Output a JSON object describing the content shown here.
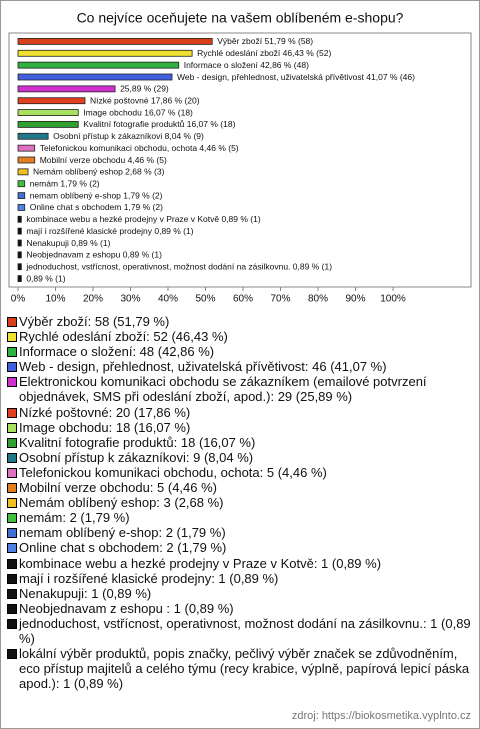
{
  "chart_data": {
    "type": "bar",
    "orientation": "horizontal",
    "title": "Co nejvíce oceňujete na vašem oblíbeném e-shopu?",
    "values": [
      51.79,
      46.43,
      42.86,
      41.07,
      25.89,
      17.86,
      16.07,
      16.07,
      8.04,
      4.46,
      4.46,
      2.68,
      1.79,
      1.79,
      1.79,
      0.89,
      0.89,
      0.89,
      0.89,
      0.89,
      0.89
    ],
    "value_labels": [
      "Výběr zboží 51,79 % (58)",
      "Rychlé odeslání zboží 46,43 % (52)",
      "Informace o složení 42,86 % (48)",
      "Web - design, přehlednost, uživatelská přívětivost 41,07 % (46)",
      "25,89 % (29)",
      "Nízké poštovné 17,86 % (20)",
      "Image obchodu 16,07 % (18)",
      "Kvalitní fotografie produktů 16,07 % (18)",
      "Osobní přístup k zákazníkovi 8,04 % (9)",
      "Telefonickou komunikaci obchodu, ochota 4,46 % (5)",
      "Mobilní verze obchodu 4,46 % (5)",
      "Nemám oblíbený eshop 2,68 % (3)",
      "nemám 1,79 % (2)",
      "nemam oblíbený e-shop 1,79 % (2)",
      "Online chat s obchodem 1,79 % (2)",
      "kombinace webu a hezké prodejny v Praze v Kotvě 0,89 % (1)",
      "mají i rozšířené klasické prodejny 0,89 % (1)",
      "Nenakupuji 0,89 % (1)",
      "Neobjednavam z eshopu  0,89 % (1)",
      "jednoduchost, vstřícnost, operativnost, možnost dodání na zásilkovnu. 0,89 % (1)",
      "0,89 % (1)"
    ],
    "legend": [
      "Výběr zboží: 58 (51,79 %)",
      "Rychlé odeslání zboží: 52 (46,43 %)",
      "Informace o složení: 48 (42,86 %)",
      "Web - design, přehlednost, uživatelská přívětivost: 46 (41,07 %)",
      "Elektronickou komunikaci obchodu se zákazníkem (emailové potvrzení objednávek, SMS při odeslání zboží, apod.): 29 (25,89 %)",
      "Nízké poštovné: 20 (17,86 %)",
      "Image obchodu: 18 (16,07 %)",
      "Kvalitní fotografie produktů: 18 (16,07 %)",
      "Osobní přístup k zákazníkovi: 9 (8,04 %)",
      "Telefonickou komunikaci obchodu, ochota: 5 (4,46 %)",
      "Mobilní verze obchodu: 5 (4,46 %)",
      "Nemám oblíbený eshop: 3 (2,68 %)",
      "nemám: 2 (1,79 %)",
      "nemam oblíbený e-shop: 2 (1,79 %)",
      "Online chat s obchodem: 2 (1,79 %)",
      "kombinace webu a hezké prodejny v Praze v Kotvě: 1 (0,89 %)",
      "mají i rozšířené klasické prodejny: 1 (0,89 %)",
      "Nenakupuji: 1 (0,89 %)",
      "Neobjednavam z eshopu : 1 (0,89 %)",
      "jednoduchost, vstřícnost, operativnost, možnost dodání na zásilkovnu.: 1 (0,89 %)",
      "lokální výběr produktů, popis značky, pečlivý výběr značek se zdůvodněním, eco přístup majitelů a celého týmu (recy krabice, výplně, papírová lepicí páska apod.): 1 (0,89 %)"
    ],
    "colors": [
      "#d8401c",
      "#f0e030",
      "#30b040",
      "#4060e0",
      "#d030d0",
      "#e04020",
      "#a8e060",
      "#30a030",
      "#207888",
      "#e070c0",
      "#e08020",
      "#f0c020",
      "#40c040",
      "#4070d0",
      "#5080e0",
      "#111111",
      "#111111",
      "#111111",
      "#111111",
      "#111111",
      "#111111"
    ],
    "xlim": [
      0,
      100
    ],
    "xticks": [
      {
        "value": 0,
        "label": "0%"
      },
      {
        "value": 10,
        "label": "10%"
      },
      {
        "value": 20,
        "label": "20%"
      },
      {
        "value": 30,
        "label": "30%"
      },
      {
        "value": 40,
        "label": "40%"
      },
      {
        "value": 50,
        "label": "50%"
      },
      {
        "value": 60,
        "label": "60%"
      },
      {
        "value": 70,
        "label": "70%"
      },
      {
        "value": 80,
        "label": "80%"
      },
      {
        "value": 90,
        "label": "90%"
      },
      {
        "value": 100,
        "label": "100%"
      }
    ],
    "source": "zdroj: https://biokosmetika.vyplnto.cz"
  }
}
